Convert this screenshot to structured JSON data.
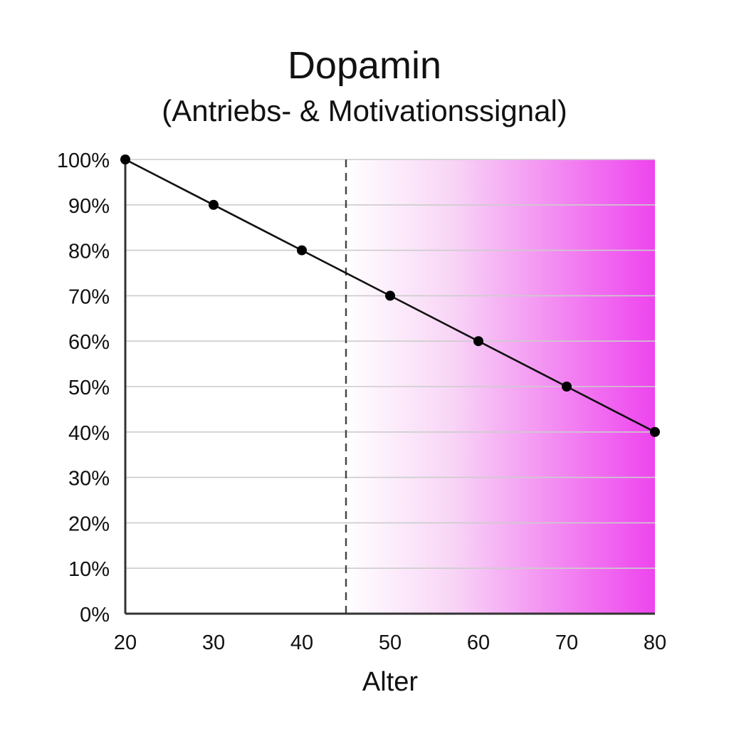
{
  "chart_data": {
    "type": "line",
    "title": "Dopamin",
    "subtitle": "(Antriebs- & Motivationssignal)",
    "xlabel": "Alter",
    "ylabel": "",
    "x": [
      20,
      30,
      40,
      50,
      60,
      70,
      80
    ],
    "series": [
      {
        "values": [
          100,
          90,
          80,
          70,
          60,
          50,
          40
        ]
      }
    ],
    "xlim": [
      20,
      80
    ],
    "ylim": [
      0,
      100
    ],
    "x_ticks": [
      "20",
      "30",
      "40",
      "50",
      "60",
      "70",
      "80"
    ],
    "y_ticks": [
      "0%",
      "10%",
      "20%",
      "30%",
      "40%",
      "50%",
      "60%",
      "70%",
      "80%",
      "90%",
      "100%"
    ],
    "y_tick_values": [
      0,
      10,
      20,
      30,
      40,
      50,
      60,
      70,
      80,
      90,
      100
    ],
    "grid": "horizontal",
    "legend": "none",
    "reference_line_x": 45,
    "shaded_region": {
      "from": 45,
      "to": 80,
      "gradient": "white-to-magenta"
    },
    "colors": {
      "line": "#111111",
      "marker": "#000000",
      "grid": "#cccccc",
      "axis": "#333333",
      "reference_line": "#444444",
      "shade_start": "#ffffff",
      "shade_end": "#ee44ee"
    }
  }
}
